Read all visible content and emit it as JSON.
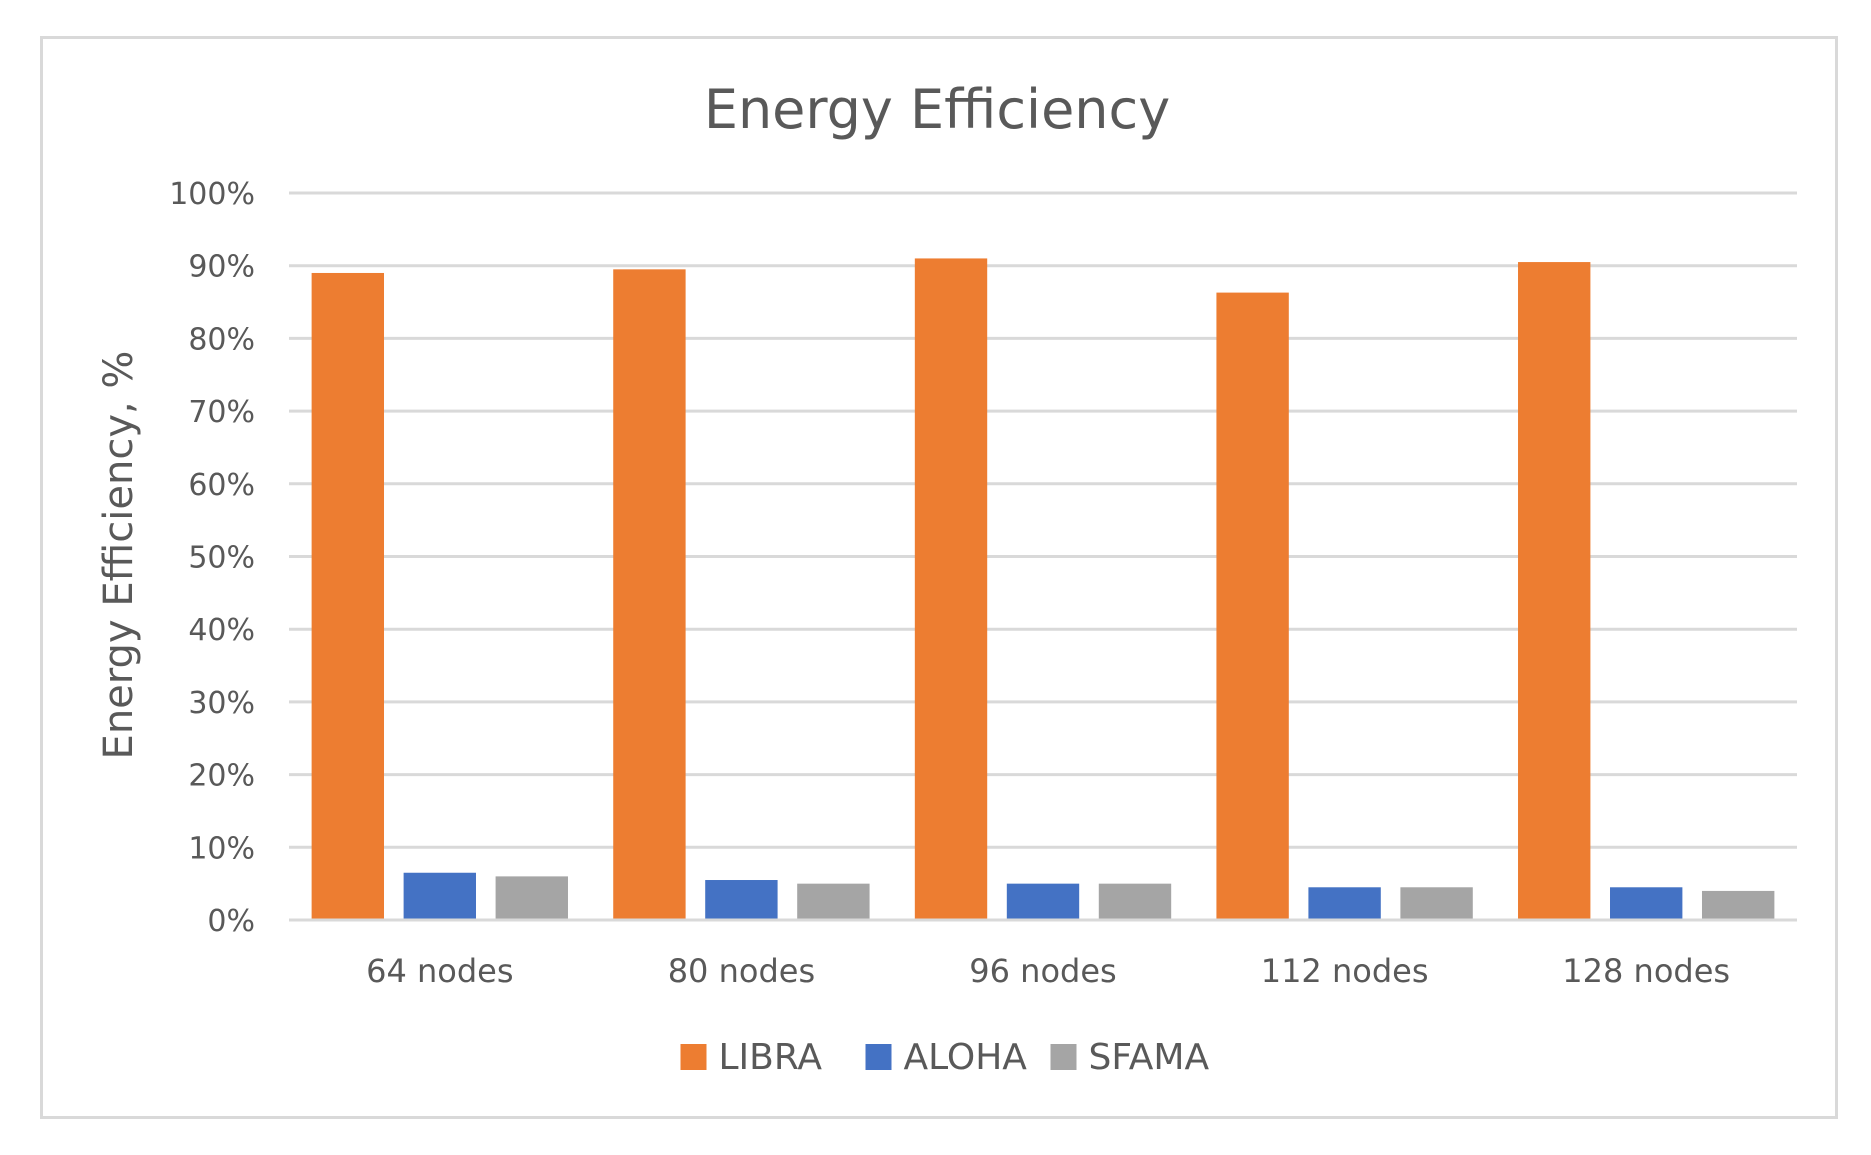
{
  "chart_data": {
    "type": "bar",
    "title": "Energy Efficiency",
    "xlabel": "",
    "ylabel": "Energy Efficiency, %",
    "categories": [
      "64 nodes",
      "80 nodes",
      "96 nodes",
      "112 nodes",
      "128 nodes"
    ],
    "series": [
      {
        "name": "LIBRA",
        "color": "#ed7d31",
        "values": [
          89,
          89.5,
          91,
          86.3,
          90.5
        ]
      },
      {
        "name": "ALOHA",
        "color": "#4472c4",
        "values": [
          6.5,
          5.5,
          5,
          4.5,
          4.5
        ]
      },
      {
        "name": "SFAMA",
        "color": "#a5a5a5",
        "values": [
          6,
          5,
          5,
          4.5,
          4
        ]
      }
    ],
    "ylim": [
      0,
      100
    ],
    "yticks": [
      0,
      10,
      20,
      30,
      40,
      50,
      60,
      70,
      80,
      90,
      100
    ],
    "ytick_labels": [
      "0%",
      "10%",
      "20%",
      "30%",
      "40%",
      "50%",
      "60%",
      "70%",
      "80%",
      "90%",
      "100%"
    ],
    "grid": true,
    "legend_position": "bottom-center"
  }
}
